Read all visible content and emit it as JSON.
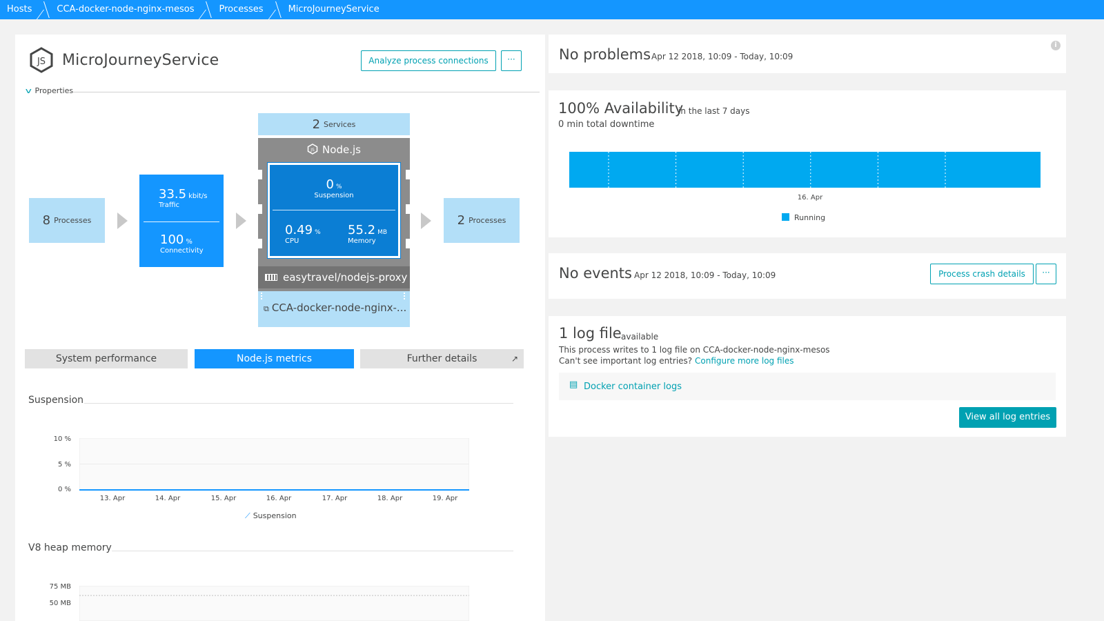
{
  "breadcrumb": [
    "Hosts",
    "CCA-docker-node-nginx-mesos",
    "Processes",
    "MicroJourneyService"
  ],
  "process": {
    "name": "MicroJourneyService",
    "analyze_label": "Analyze process connections",
    "more_label": "···",
    "properties_label": "Properties"
  },
  "topology": {
    "callers": {
      "value": "8",
      "unit": "Processes"
    },
    "traffic": {
      "value": "33.5",
      "unit": "kbit/s",
      "label": "Traffic"
    },
    "connectivity": {
      "value": "100",
      "unit": "%",
      "label": "Connectivity"
    },
    "services": {
      "value": "2",
      "unit": "Services"
    },
    "technology": "Node.js",
    "suspension": {
      "value": "0",
      "unit": "%",
      "label": "Suspension"
    },
    "cpu": {
      "value": "0.49",
      "unit": "%",
      "label": "CPU"
    },
    "memory": {
      "value": "55.2",
      "unit": "MB",
      "label": "Memory"
    },
    "image": "easytravel/nodejs-proxy",
    "host": "CCA-docker-node-nginx-...",
    "callees": {
      "value": "2",
      "unit": "Processes"
    }
  },
  "tabs": [
    "System performance",
    "Node.js metrics",
    "Further details"
  ],
  "charts": {
    "suspension": {
      "title": "Suspension",
      "legend": "Suspension",
      "yticks": [
        "10 %",
        "5 %",
        "0 %"
      ],
      "xticks": [
        "13. Apr",
        "14. Apr",
        "15. Apr",
        "16. Apr",
        "17. Apr",
        "18. Apr",
        "19. Apr"
      ]
    },
    "heap": {
      "title": "V8 heap memory",
      "yticks": [
        "75 MB",
        "50 MB"
      ]
    }
  },
  "chart_data": [
    {
      "type": "line",
      "title": "Suspension",
      "x": [
        "13. Apr",
        "14. Apr",
        "15. Apr",
        "16. Apr",
        "17. Apr",
        "18. Apr",
        "19. Apr"
      ],
      "series": [
        {
          "name": "Suspension",
          "values": [
            0,
            0,
            0,
            0,
            0,
            0,
            0
          ]
        }
      ],
      "ylim": [
        0,
        10
      ],
      "ylabel": ""
    },
    {
      "type": "bar",
      "title": "100% Availability",
      "categories": [
        "16. Apr"
      ],
      "series": [
        {
          "name": "Running",
          "values": [
            100
          ]
        }
      ]
    }
  ],
  "problems": {
    "title": "No problems",
    "range": "Apr 12 2018, 10:09 - Today, 10:09",
    "info": "i"
  },
  "availability": {
    "title": "100% Availability",
    "period": "in the last 7 days",
    "downtime": "0 min total downtime",
    "xtick": "16. Apr",
    "legend": "Running",
    "color": "#00a9f0"
  },
  "events": {
    "title": "No events",
    "range": "Apr 12 2018, 10:09 - Today, 10:09",
    "crash_label": "Process crash details",
    "more_label": "···"
  },
  "logs": {
    "title": "1 log file",
    "status": "available",
    "desc": "This process writes to 1 log file on CCA-docker-node-nginx-mesos",
    "question": "Can't see important log entries?",
    "configure": "Configure more log files",
    "entry": "Docker container logs",
    "view_all": "View all log entries"
  }
}
